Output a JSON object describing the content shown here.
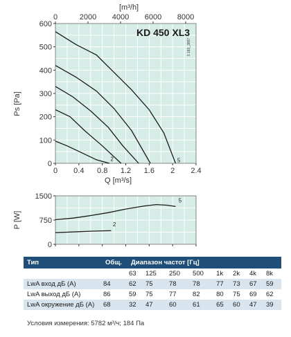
{
  "chart_data": [
    {
      "type": "line",
      "title": "KD 450 XL3",
      "code": "3 183_3897",
      "xlabel": "Q [m³/s]",
      "ylabel": "Ps [Pa]",
      "x2label": "[m³/h]",
      "xlim": [
        0,
        2.4
      ],
      "ylim": [
        0,
        600
      ],
      "x_ticks": [
        0,
        0.4,
        0.8,
        1.2,
        1.6,
        2,
        2.4
      ],
      "x_tick_labels": [
        "0",
        "0.4",
        "0.8",
        "1.2",
        "1.6",
        "2",
        "2.4"
      ],
      "y_ticks": [
        0,
        100,
        200,
        300,
        400,
        500,
        600
      ],
      "y_tick_labels": [
        "0",
        "100",
        "200",
        "300",
        "400",
        "500",
        "600"
      ],
      "x2_ticks": [
        0,
        2000,
        4000,
        6000,
        8000
      ],
      "x2_tick_labels": [
        "0",
        "2000",
        "4000",
        "6000",
        "8000"
      ],
      "grid": true,
      "series": [
        {
          "name": "5",
          "x": [
            0,
            0.35,
            0.7,
            1.0,
            1.3,
            1.6,
            1.85,
            2.05
          ],
          "y": [
            565,
            510,
            465,
            390,
            315,
            230,
            130,
            0
          ]
        },
        {
          "name": "",
          "x": [
            0,
            0.35,
            0.7,
            1.0,
            1.3,
            1.62
          ],
          "y": [
            420,
            370,
            310,
            235,
            140,
            0
          ]
        },
        {
          "name": "",
          "x": [
            0,
            0.3,
            0.6,
            0.9,
            1.15,
            1.42
          ],
          "y": [
            330,
            285,
            225,
            155,
            75,
            0
          ]
        },
        {
          "name": "",
          "x": [
            0,
            0.25,
            0.5,
            0.8,
            1.12
          ],
          "y": [
            230,
            200,
            140,
            75,
            0
          ]
        },
        {
          "name": "2",
          "x": [
            0,
            0.2,
            0.45,
            0.7,
            0.92
          ],
          "y": [
            95,
            75,
            45,
            15,
            0
          ]
        }
      ],
      "curve_labels": [
        {
          "text": "5",
          "x": 2.08,
          "y": 5
        },
        {
          "text": "2",
          "x": 0.94,
          "y": 10
        }
      ]
    },
    {
      "type": "line",
      "xlabel": "",
      "ylabel": "P [W]",
      "xlim": [
        0,
        2.4
      ],
      "ylim": [
        0,
        1500
      ],
      "y_ticks": [
        0,
        750,
        1500
      ],
      "y_tick_labels": [
        "0",
        "750",
        "1500"
      ],
      "x_ticks": [
        0,
        0.4,
        0.8,
        1.2,
        1.6,
        2,
        2.4
      ],
      "grid": true,
      "series": [
        {
          "name": "5",
          "x": [
            0,
            0.3,
            0.6,
            0.9,
            1.2,
            1.5,
            1.72,
            1.9,
            2.05
          ],
          "y": [
            760,
            810,
            890,
            980,
            1090,
            1180,
            1230,
            1210,
            1170
          ]
        },
        {
          "name": "2",
          "x": [
            0,
            0.2,
            0.4,
            0.6,
            0.8,
            0.95
          ],
          "y": [
            360,
            375,
            390,
            405,
            415,
            420
          ]
        }
      ],
      "curve_labels": [
        {
          "text": "5",
          "x": 2.1,
          "y": 1300
        },
        {
          "text": "2",
          "x": 0.98,
          "y": 560
        }
      ]
    }
  ],
  "table": {
    "headers": {
      "type": "Тип",
      "total": "Общ.",
      "bands": "Диапазон частот [Гц]"
    },
    "freqs": [
      "63",
      "125",
      "250",
      "500",
      "1k",
      "2k",
      "4k",
      "8k"
    ],
    "rows": [
      {
        "label": "LwA вход дБ (А)",
        "total": "84",
        "values": [
          "62",
          "75",
          "78",
          "78",
          "77",
          "73",
          "67",
          "59"
        ]
      },
      {
        "label": "LwA выход дБ (А)",
        "total": "86",
        "values": [
          "59",
          "75",
          "77",
          "82",
          "80",
          "75",
          "69",
          "62"
        ]
      },
      {
        "label": "LwA окружение дБ (А)",
        "total": "68",
        "values": [
          "32",
          "47",
          "60",
          "61",
          "65",
          "60",
          "47",
          "39"
        ]
      }
    ]
  },
  "conditions": "Условия измерения: 5782 м³/ч; 184 Па",
  "colors": {
    "plot_bg": "#d6ece7",
    "grid": "#ffffff",
    "curve": "#1a1a1a",
    "header_bg": "#1f4e79",
    "shaded_row": "#d8e5ef"
  }
}
